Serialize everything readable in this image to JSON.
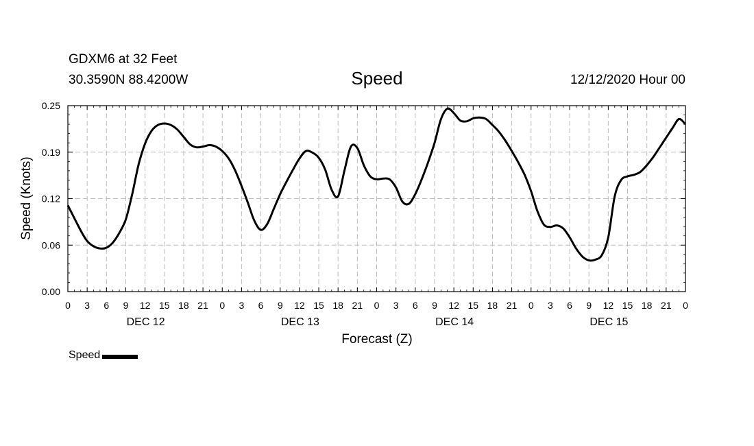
{
  "header": {
    "station": "GDXM6 at 32 Feet",
    "latlon": "30.3590N 88.4200W",
    "title": "Speed",
    "datetime": "12/12/2020 Hour 00"
  },
  "chart_data": {
    "type": "line",
    "title": "Speed",
    "xlabel": "Forecast (Z)",
    "ylabel": "Speed (Knots)",
    "ylim": [
      0,
      0.25
    ],
    "xlim_hours": [
      0,
      96
    ],
    "y_ticks": [
      "0.00",
      "0.06",
      "0.12",
      "0.19",
      "0.25"
    ],
    "x_tick_labels": [
      "0",
      "3",
      "6",
      "9",
      "12",
      "15",
      "18",
      "21",
      "0",
      "3",
      "6",
      "9",
      "12",
      "15",
      "18",
      "21",
      "0",
      "3",
      "6",
      "9",
      "12",
      "15",
      "18",
      "21",
      "0",
      "3",
      "6",
      "9",
      "12",
      "15",
      "18",
      "21",
      "0"
    ],
    "day_labels": [
      "DEC 12",
      "DEC 13",
      "DEC 14",
      "DEC 15"
    ],
    "grid": true,
    "legend": "bottom-left",
    "series": [
      {
        "name": "Speed",
        "color": "#000000",
        "x": [
          0,
          2,
          3,
          4,
          5,
          6,
          7,
          8,
          9,
          10,
          11,
          12,
          13,
          14,
          15,
          16,
          17,
          18,
          19,
          20,
          21,
          22,
          23,
          24,
          25,
          26,
          27,
          28,
          29,
          30,
          31,
          32,
          33,
          34,
          35,
          36,
          37,
          38,
          39,
          40,
          41,
          42,
          43,
          44,
          45,
          46,
          47,
          48,
          49,
          50,
          51,
          52,
          53,
          54,
          55,
          56,
          57,
          58,
          59,
          60,
          61,
          62,
          63,
          64,
          65,
          66,
          67,
          68,
          69,
          70,
          71,
          72,
          73,
          74,
          75,
          76,
          77,
          78,
          79,
          80,
          81,
          82,
          83,
          84,
          85,
          86,
          87,
          88,
          89,
          90,
          91,
          92,
          93,
          94,
          95,
          96
        ],
        "values": [
          0.116,
          0.082,
          0.068,
          0.061,
          0.058,
          0.059,
          0.066,
          0.079,
          0.097,
          0.131,
          0.171,
          0.199,
          0.216,
          0.224,
          0.226,
          0.224,
          0.218,
          0.208,
          0.198,
          0.194,
          0.195,
          0.197,
          0.195,
          0.189,
          0.179,
          0.163,
          0.142,
          0.119,
          0.095,
          0.083,
          0.091,
          0.111,
          0.131,
          0.148,
          0.164,
          0.179,
          0.189,
          0.187,
          0.18,
          0.164,
          0.137,
          0.128,
          0.163,
          0.195,
          0.193,
          0.17,
          0.155,
          0.151,
          0.152,
          0.151,
          0.14,
          0.121,
          0.118,
          0.131,
          0.151,
          0.174,
          0.2,
          0.232,
          0.246,
          0.24,
          0.23,
          0.229,
          0.233,
          0.234,
          0.232,
          0.224,
          0.215,
          0.203,
          0.189,
          0.174,
          0.157,
          0.135,
          0.108,
          0.09,
          0.087,
          0.089,
          0.085,
          0.073,
          0.058,
          0.047,
          0.042,
          0.043,
          0.049,
          0.073,
          0.128,
          0.15,
          0.155,
          0.157,
          0.161,
          0.17,
          0.181,
          0.194,
          0.207,
          0.22,
          0.232,
          0.225
        ]
      }
    ]
  }
}
